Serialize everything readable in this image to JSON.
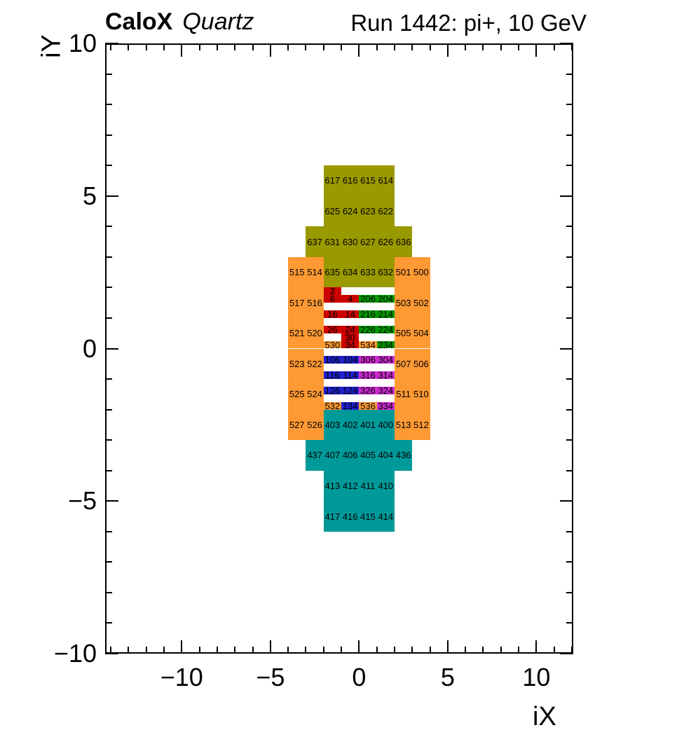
{
  "title": {
    "experiment": "CaloX",
    "detector": "Quartz",
    "run_info": "Run 1442: pi+, 10 GeV"
  },
  "chart_data": {
    "type": "heatmap",
    "title": "CaloX Quartz — Run 1442: pi+, 10 GeV",
    "xlabel": "iX",
    "ylabel": "iY",
    "xlim": [
      -14.32,
      12.08
    ],
    "ylim": [
      -10,
      10
    ],
    "grid": false,
    "minor_tick_step": 1,
    "x_ticks": [
      {
        "v": -10,
        "label": "−10"
      },
      {
        "v": -5,
        "label": "−5"
      },
      {
        "v": 0,
        "label": "0"
      },
      {
        "v": 5,
        "label": "5"
      },
      {
        "v": 10,
        "label": "10"
      }
    ],
    "y_ticks": [
      {
        "v": 10,
        "label": "10"
      },
      {
        "v": 5,
        "label": "5"
      },
      {
        "v": 0,
        "label": "0"
      },
      {
        "v": -5,
        "label": "−5"
      },
      {
        "v": -10,
        "label": "−10"
      }
    ],
    "colors": {
      "olive": "#999900",
      "orange": "#FF9933",
      "teal": "#009999",
      "red": "#CC0000",
      "green": "#009900",
      "blue": "#2121CE",
      "magenta": "#CC2BD0"
    },
    "cells": [
      {
        "id": "617",
        "x": -2,
        "y": 6,
        "c": "olive"
      },
      {
        "id": "616",
        "x": -1,
        "y": 6,
        "c": "olive"
      },
      {
        "id": "615",
        "x": 0,
        "y": 6,
        "c": "olive"
      },
      {
        "id": "614",
        "x": 1,
        "y": 6,
        "c": "olive"
      },
      {
        "id": "625",
        "x": -2,
        "y": 5,
        "c": "olive"
      },
      {
        "id": "624",
        "x": -1,
        "y": 5,
        "c": "olive"
      },
      {
        "id": "623",
        "x": 0,
        "y": 5,
        "c": "olive"
      },
      {
        "id": "622",
        "x": 1,
        "y": 5,
        "c": "olive"
      },
      {
        "id": "637",
        "x": -3,
        "y": 4,
        "c": "olive"
      },
      {
        "id": "631",
        "x": -2,
        "y": 4,
        "c": "olive"
      },
      {
        "id": "630",
        "x": -1,
        "y": 4,
        "c": "olive"
      },
      {
        "id": "627",
        "x": 0,
        "y": 4,
        "c": "olive"
      },
      {
        "id": "626",
        "x": 1,
        "y": 4,
        "c": "olive"
      },
      {
        "id": "636",
        "x": 2,
        "y": 4,
        "c": "olive"
      },
      {
        "id": "635",
        "x": -2,
        "y": 3,
        "c": "olive"
      },
      {
        "id": "634",
        "x": -1,
        "y": 3,
        "c": "olive"
      },
      {
        "id": "633",
        "x": 0,
        "y": 3,
        "c": "olive"
      },
      {
        "id": "632",
        "x": 1,
        "y": 3,
        "c": "olive"
      },
      {
        "id": "515",
        "x": -4,
        "y": 3,
        "c": "orange"
      },
      {
        "id": "514",
        "x": -3,
        "y": 3,
        "c": "orange"
      },
      {
        "id": "501",
        "x": 2,
        "y": 3,
        "c": "orange"
      },
      {
        "id": "500",
        "x": 3,
        "y": 3,
        "c": "orange"
      },
      {
        "id": "517",
        "x": -4,
        "y": 2,
        "c": "orange"
      },
      {
        "id": "516",
        "x": -3,
        "y": 2,
        "c": "orange"
      },
      {
        "id": "503",
        "x": 2,
        "y": 2,
        "c": "orange"
      },
      {
        "id": "502",
        "x": 3,
        "y": 2,
        "c": "orange"
      },
      {
        "id": "521",
        "x": -4,
        "y": 1,
        "c": "orange"
      },
      {
        "id": "520",
        "x": -3,
        "y": 1,
        "c": "orange"
      },
      {
        "id": "505",
        "x": 2,
        "y": 1,
        "c": "orange"
      },
      {
        "id": "504",
        "x": 3,
        "y": 1,
        "c": "orange"
      },
      {
        "id": "523",
        "x": -4,
        "y": 0,
        "c": "orange"
      },
      {
        "id": "522",
        "x": -3,
        "y": 0,
        "c": "orange"
      },
      {
        "id": "507",
        "x": 2,
        "y": 0,
        "c": "orange"
      },
      {
        "id": "506",
        "x": 3,
        "y": 0,
        "c": "orange"
      },
      {
        "id": "525",
        "x": -4,
        "y": -1,
        "c": "orange"
      },
      {
        "id": "524",
        "x": -3,
        "y": -1,
        "c": "orange"
      },
      {
        "id": "511",
        "x": 2,
        "y": -1,
        "c": "orange"
      },
      {
        "id": "510",
        "x": 3,
        "y": -1,
        "c": "orange"
      },
      {
        "id": "527",
        "x": -4,
        "y": -2,
        "c": "orange"
      },
      {
        "id": "526",
        "x": -3,
        "y": -2,
        "c": "orange"
      },
      {
        "id": "513",
        "x": 2,
        "y": -2,
        "c": "orange"
      },
      {
        "id": "512",
        "x": 3,
        "y": -2,
        "c": "orange"
      },
      {
        "id": "530",
        "x": -2,
        "y": 0.25,
        "h": 0.25,
        "c": "orange"
      },
      {
        "id": "534",
        "x": 0,
        "y": 0.25,
        "h": 0.25,
        "c": "orange"
      },
      {
        "id": "532",
        "x": -2,
        "y": -1.75,
        "h": 0.25,
        "c": "orange"
      },
      {
        "id": "536",
        "x": 0,
        "y": -1.75,
        "h": 0.25,
        "c": "orange"
      },
      {
        "id": "403",
        "x": -2,
        "y": -2,
        "c": "teal"
      },
      {
        "id": "402",
        "x": -1,
        "y": -2,
        "c": "teal"
      },
      {
        "id": "401",
        "x": 0,
        "y": -2,
        "c": "teal"
      },
      {
        "id": "400",
        "x": 1,
        "y": -2,
        "c": "teal"
      },
      {
        "id": "437",
        "x": -3,
        "y": -3,
        "c": "teal"
      },
      {
        "id": "407",
        "x": -2,
        "y": -3,
        "c": "teal"
      },
      {
        "id": "406",
        "x": -1,
        "y": -3,
        "c": "teal"
      },
      {
        "id": "405",
        "x": 0,
        "y": -3,
        "c": "teal"
      },
      {
        "id": "404",
        "x": 1,
        "y": -3,
        "c": "teal"
      },
      {
        "id": "436",
        "x": 2,
        "y": -3,
        "c": "teal"
      },
      {
        "id": "413",
        "x": -2,
        "y": -4,
        "c": "teal"
      },
      {
        "id": "412",
        "x": -1,
        "y": -4,
        "c": "teal"
      },
      {
        "id": "411",
        "x": 0,
        "y": -4,
        "c": "teal"
      },
      {
        "id": "410",
        "x": 1,
        "y": -4,
        "c": "teal"
      },
      {
        "id": "417",
        "x": -2,
        "y": -5,
        "c": "teal"
      },
      {
        "id": "416",
        "x": -1,
        "y": -5,
        "c": "teal"
      },
      {
        "id": "415",
        "x": 0,
        "y": -5,
        "c": "teal"
      },
      {
        "id": "414",
        "x": 1,
        "y": -5,
        "c": "teal"
      },
      {
        "id": "2",
        "x": -2,
        "y": 2,
        "h": 0.25,
        "c": "red"
      },
      {
        "id": "6",
        "x": -2,
        "y": 1.75,
        "h": 0.25,
        "c": "red"
      },
      {
        "id": "4",
        "x": -1,
        "y": 1.75,
        "h": 0.25,
        "c": "red"
      },
      {
        "id": "16",
        "x": -2,
        "y": 1.25,
        "h": 0.25,
        "c": "red"
      },
      {
        "id": "14",
        "x": -1,
        "y": 1.25,
        "h": 0.25,
        "c": "red"
      },
      {
        "id": "26",
        "x": -2,
        "y": 0.75,
        "h": 0.25,
        "c": "red"
      },
      {
        "id": "24",
        "x": -1,
        "y": 0.75,
        "h": 0.25,
        "c": "red"
      },
      {
        "id": "30",
        "x": -1,
        "y": 0.5,
        "h": 0.25,
        "c": "red"
      },
      {
        "id": "34",
        "x": -1,
        "y": 0.25,
        "h": 0.25,
        "c": "red"
      },
      {
        "id": "206",
        "x": 0,
        "y": 1.75,
        "h": 0.25,
        "c": "green"
      },
      {
        "id": "204",
        "x": 1,
        "y": 1.75,
        "h": 0.25,
        "c": "green"
      },
      {
        "id": "216",
        "x": 0,
        "y": 1.25,
        "h": 0.25,
        "c": "green"
      },
      {
        "id": "214",
        "x": 1,
        "y": 1.25,
        "h": 0.25,
        "c": "green"
      },
      {
        "id": "226",
        "x": 0,
        "y": 0.75,
        "h": 0.25,
        "c": "green"
      },
      {
        "id": "224",
        "x": 1,
        "y": 0.75,
        "h": 0.25,
        "c": "green"
      },
      {
        "id": "234",
        "x": 1,
        "y": 0.25,
        "h": 0.25,
        "c": "green"
      },
      {
        "id": "106",
        "x": -2,
        "y": -0.25,
        "h": 0.25,
        "c": "blue"
      },
      {
        "id": "104",
        "x": -1,
        "y": -0.25,
        "h": 0.25,
        "c": "blue"
      },
      {
        "id": "116",
        "x": -2,
        "y": -0.75,
        "h": 0.25,
        "c": "blue"
      },
      {
        "id": "114",
        "x": -1,
        "y": -0.75,
        "h": 0.25,
        "c": "blue"
      },
      {
        "id": "126",
        "x": -2,
        "y": -1.25,
        "h": 0.25,
        "c": "blue"
      },
      {
        "id": "124",
        "x": -1,
        "y": -1.25,
        "h": 0.25,
        "c": "blue"
      },
      {
        "id": "134",
        "x": -1,
        "y": -1.75,
        "h": 0.25,
        "c": "blue"
      },
      {
        "id": "306",
        "x": 0,
        "y": -0.25,
        "h": 0.25,
        "c": "magenta"
      },
      {
        "id": "304",
        "x": 1,
        "y": -0.25,
        "h": 0.25,
        "c": "magenta"
      },
      {
        "id": "316",
        "x": 0,
        "y": -0.75,
        "h": 0.25,
        "c": "magenta"
      },
      {
        "id": "314",
        "x": 1,
        "y": -0.75,
        "h": 0.25,
        "c": "magenta"
      },
      {
        "id": "326",
        "x": 0,
        "y": -1.25,
        "h": 0.25,
        "c": "magenta"
      },
      {
        "id": "324",
        "x": 1,
        "y": -1.25,
        "h": 0.25,
        "c": "magenta"
      },
      {
        "id": "334",
        "x": 1,
        "y": -1.75,
        "h": 0.25,
        "c": "magenta"
      }
    ]
  }
}
